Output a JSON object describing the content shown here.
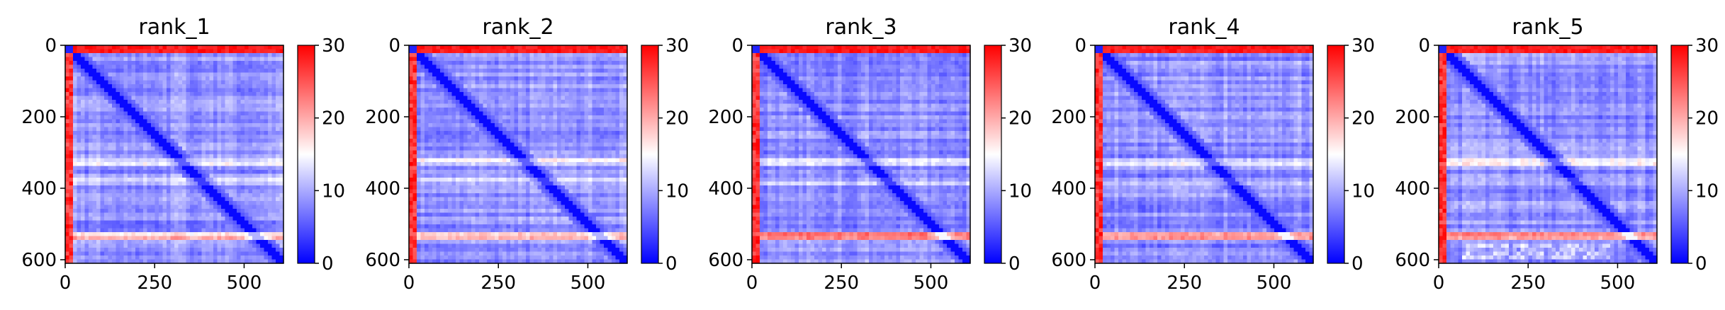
{
  "chart_data": [
    {
      "type": "heatmap",
      "title": "rank_1",
      "xlabel": "",
      "ylabel": "",
      "xlim": [
        0,
        610
      ],
      "ylim": [
        610,
        0
      ],
      "x_ticks": [
        "0",
        "250",
        "500"
      ],
      "y_ticks": [
        "0",
        "200",
        "400",
        "600"
      ],
      "colorbar": {
        "ticks": [
          "0",
          "10",
          "20",
          "30"
        ],
        "range": [
          0,
          30
        ],
        "colormap": "bwr"
      },
      "variant": 1
    },
    {
      "type": "heatmap",
      "title": "rank_2",
      "xlabel": "",
      "ylabel": "",
      "xlim": [
        0,
        610
      ],
      "ylim": [
        610,
        0
      ],
      "x_ticks": [
        "0",
        "250",
        "500"
      ],
      "y_ticks": [
        "0",
        "200",
        "400",
        "600"
      ],
      "colorbar": {
        "ticks": [
          "0",
          "10",
          "20",
          "30"
        ],
        "range": [
          0,
          30
        ],
        "colormap": "bwr"
      },
      "variant": 2
    },
    {
      "type": "heatmap",
      "title": "rank_3",
      "xlabel": "",
      "ylabel": "",
      "xlim": [
        0,
        610
      ],
      "ylim": [
        610,
        0
      ],
      "x_ticks": [
        "0",
        "250",
        "500"
      ],
      "y_ticks": [
        "0",
        "200",
        "400",
        "600"
      ],
      "colorbar": {
        "ticks": [
          "0",
          "10",
          "20",
          "30"
        ],
        "range": [
          0,
          30
        ],
        "colormap": "bwr"
      },
      "variant": 3
    },
    {
      "type": "heatmap",
      "title": "rank_4",
      "xlabel": "",
      "ylabel": "",
      "xlim": [
        0,
        610
      ],
      "ylim": [
        610,
        0
      ],
      "x_ticks": [
        "0",
        "250",
        "500"
      ],
      "y_ticks": [
        "0",
        "200",
        "400",
        "600"
      ],
      "colorbar": {
        "ticks": [
          "0",
          "10",
          "20",
          "30"
        ],
        "range": [
          0,
          30
        ],
        "colormap": "bwr"
      },
      "variant": 4
    },
    {
      "type": "heatmap",
      "title": "rank_5",
      "xlabel": "",
      "ylabel": "",
      "xlim": [
        0,
        610
      ],
      "ylim": [
        610,
        0
      ],
      "x_ticks": [
        "0",
        "250",
        "500"
      ],
      "y_ticks": [
        "0",
        "200",
        "400",
        "600"
      ],
      "colorbar": {
        "ticks": [
          "0",
          "10",
          "20",
          "30"
        ],
        "range": [
          0,
          30
        ],
        "colormap": "bwr"
      },
      "variant": 5
    }
  ],
  "colors": {
    "low": "#0000ff",
    "mid": "#ffffff",
    "high": "#ff0000"
  }
}
